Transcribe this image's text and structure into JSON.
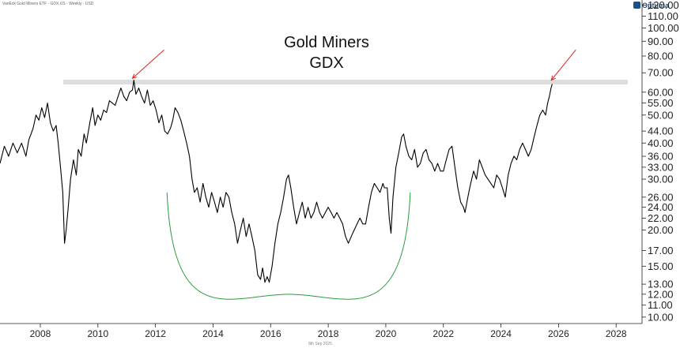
{
  "header": {
    "source_line": "VanEck Gold Miners ETF - GDX.US - Weekly - USD",
    "brand": "Optuma"
  },
  "footer": {
    "date_stamp": "8th Sep 2025"
  },
  "colors": {
    "price_line": "#000000",
    "arrow": "#e02020",
    "arc": "#2a9d3a",
    "resistance_band": "#dddddd",
    "brand": "#1a4f8a"
  },
  "chart_data": {
    "type": "line",
    "title": "Gold Miners",
    "subtitle": "GDX",
    "xlabel": "",
    "ylabel": "",
    "y_scale": "log",
    "xlim": [
      2006.6,
      2028.9
    ],
    "ylim": [
      9.5,
      125
    ],
    "x_ticks": [
      2008,
      2010,
      2012,
      2014,
      2016,
      2018,
      2020,
      2022,
      2024,
      2026,
      2028
    ],
    "y_ticks": [
      120,
      110,
      100,
      90,
      80,
      70,
      60,
      55,
      50,
      44,
      40,
      36,
      33,
      30,
      26,
      24,
      22,
      20,
      17,
      15,
      13,
      12,
      11,
      10
    ],
    "grid": false,
    "series": [
      {
        "values": [
          [
            2006.6,
            34
          ],
          [
            2006.75,
            39
          ],
          [
            2006.9,
            36
          ],
          [
            2007.05,
            40
          ],
          [
            2007.2,
            37
          ],
          [
            2007.35,
            40
          ],
          [
            2007.5,
            36
          ],
          [
            2007.6,
            41
          ],
          [
            2007.75,
            45
          ],
          [
            2007.85,
            50
          ],
          [
            2007.95,
            48
          ],
          [
            2008.05,
            53
          ],
          [
            2008.15,
            49
          ],
          [
            2008.25,
            55
          ],
          [
            2008.35,
            47
          ],
          [
            2008.45,
            44
          ],
          [
            2008.55,
            46
          ],
          [
            2008.62,
            40
          ],
          [
            2008.7,
            33
          ],
          [
            2008.78,
            27
          ],
          [
            2008.84,
            18
          ],
          [
            2008.9,
            20
          ],
          [
            2008.97,
            24
          ],
          [
            2009.05,
            30
          ],
          [
            2009.15,
            35
          ],
          [
            2009.25,
            31
          ],
          [
            2009.32,
            38
          ],
          [
            2009.42,
            36
          ],
          [
            2009.52,
            43
          ],
          [
            2009.6,
            40
          ],
          [
            2009.72,
            47
          ],
          [
            2009.82,
            53
          ],
          [
            2009.9,
            46
          ],
          [
            2010.0,
            50
          ],
          [
            2010.1,
            48
          ],
          [
            2010.2,
            52
          ],
          [
            2010.3,
            51
          ],
          [
            2010.4,
            56
          ],
          [
            2010.5,
            55
          ],
          [
            2010.6,
            54
          ],
          [
            2010.7,
            58
          ],
          [
            2010.8,
            62
          ],
          [
            2010.9,
            58
          ],
          [
            2011.0,
            56
          ],
          [
            2011.1,
            60
          ],
          [
            2011.2,
            61
          ],
          [
            2011.25,
            66
          ],
          [
            2011.32,
            59
          ],
          [
            2011.42,
            62
          ],
          [
            2011.52,
            58
          ],
          [
            2011.62,
            55
          ],
          [
            2011.72,
            61
          ],
          [
            2011.82,
            54
          ],
          [
            2011.92,
            56
          ],
          [
            2012.02,
            52
          ],
          [
            2012.12,
            47
          ],
          [
            2012.22,
            50
          ],
          [
            2012.32,
            44
          ],
          [
            2012.42,
            43
          ],
          [
            2012.52,
            45
          ],
          [
            2012.6,
            48
          ],
          [
            2012.68,
            53
          ],
          [
            2012.78,
            51
          ],
          [
            2012.88,
            48
          ],
          [
            2012.98,
            44
          ],
          [
            2013.08,
            40
          ],
          [
            2013.18,
            36
          ],
          [
            2013.27,
            30
          ],
          [
            2013.35,
            27
          ],
          [
            2013.45,
            28
          ],
          [
            2013.55,
            25
          ],
          [
            2013.65,
            29
          ],
          [
            2013.75,
            26
          ],
          [
            2013.85,
            24
          ],
          [
            2013.95,
            27
          ],
          [
            2014.05,
            25
          ],
          [
            2014.15,
            23
          ],
          [
            2014.25,
            26
          ],
          [
            2014.35,
            24
          ],
          [
            2014.45,
            27
          ],
          [
            2014.55,
            26
          ],
          [
            2014.65,
            23
          ],
          [
            2014.75,
            21
          ],
          [
            2014.85,
            18
          ],
          [
            2014.95,
            20
          ],
          [
            2015.05,
            22
          ],
          [
            2015.15,
            19
          ],
          [
            2015.25,
            21
          ],
          [
            2015.35,
            19
          ],
          [
            2015.45,
            17
          ],
          [
            2015.55,
            14
          ],
          [
            2015.65,
            13.5
          ],
          [
            2015.72,
            14.8
          ],
          [
            2015.8,
            13.2
          ],
          [
            2015.88,
            13.8
          ],
          [
            2015.95,
            13.2
          ],
          [
            2016.05,
            15
          ],
          [
            2016.15,
            18
          ],
          [
            2016.25,
            21
          ],
          [
            2016.35,
            23
          ],
          [
            2016.45,
            26
          ],
          [
            2016.55,
            30
          ],
          [
            2016.62,
            31
          ],
          [
            2016.7,
            28
          ],
          [
            2016.8,
            24
          ],
          [
            2016.9,
            21
          ],
          [
            2017.0,
            23
          ],
          [
            2017.1,
            25
          ],
          [
            2017.2,
            22
          ],
          [
            2017.3,
            24
          ],
          [
            2017.4,
            22
          ],
          [
            2017.5,
            23
          ],
          [
            2017.6,
            25
          ],
          [
            2017.7,
            23
          ],
          [
            2017.8,
            22
          ],
          [
            2017.9,
            23
          ],
          [
            2018.0,
            24
          ],
          [
            2018.1,
            23
          ],
          [
            2018.2,
            22
          ],
          [
            2018.3,
            23
          ],
          [
            2018.4,
            22
          ],
          [
            2018.5,
            21
          ],
          [
            2018.6,
            19
          ],
          [
            2018.7,
            18
          ],
          [
            2018.8,
            19
          ],
          [
            2018.9,
            20
          ],
          [
            2019.0,
            21
          ],
          [
            2019.1,
            22
          ],
          [
            2019.2,
            21
          ],
          [
            2019.3,
            21
          ],
          [
            2019.4,
            24
          ],
          [
            2019.5,
            27
          ],
          [
            2019.6,
            29
          ],
          [
            2019.7,
            28
          ],
          [
            2019.8,
            27
          ],
          [
            2019.9,
            29
          ],
          [
            2019.95,
            28
          ],
          [
            2020.05,
            28
          ],
          [
            2020.12,
            22
          ],
          [
            2020.18,
            19.5
          ],
          [
            2020.25,
            26
          ],
          [
            2020.35,
            33
          ],
          [
            2020.45,
            37
          ],
          [
            2020.55,
            42
          ],
          [
            2020.62,
            43
          ],
          [
            2020.7,
            39
          ],
          [
            2020.8,
            36
          ],
          [
            2020.9,
            35
          ],
          [
            2021.0,
            38
          ],
          [
            2021.1,
            33
          ],
          [
            2021.2,
            34
          ],
          [
            2021.3,
            37
          ],
          [
            2021.4,
            38
          ],
          [
            2021.5,
            35
          ],
          [
            2021.6,
            34
          ],
          [
            2021.7,
            32
          ],
          [
            2021.8,
            34
          ],
          [
            2021.9,
            32
          ],
          [
            2022.0,
            32
          ],
          [
            2022.1,
            35
          ],
          [
            2022.2,
            38
          ],
          [
            2022.3,
            39
          ],
          [
            2022.4,
            33
          ],
          [
            2022.5,
            28
          ],
          [
            2022.6,
            25
          ],
          [
            2022.7,
            24
          ],
          [
            2022.75,
            23
          ],
          [
            2022.85,
            26
          ],
          [
            2022.95,
            29
          ],
          [
            2023.05,
            32
          ],
          [
            2023.15,
            30
          ],
          [
            2023.25,
            35
          ],
          [
            2023.35,
            33
          ],
          [
            2023.45,
            31
          ],
          [
            2023.55,
            30
          ],
          [
            2023.65,
            29
          ],
          [
            2023.75,
            28
          ],
          [
            2023.85,
            31
          ],
          [
            2023.95,
            30
          ],
          [
            2024.05,
            28
          ],
          [
            2024.15,
            26
          ],
          [
            2024.25,
            31
          ],
          [
            2024.35,
            34
          ],
          [
            2024.45,
            36
          ],
          [
            2024.55,
            35
          ],
          [
            2024.65,
            38
          ],
          [
            2024.75,
            40
          ],
          [
            2024.85,
            38
          ],
          [
            2024.95,
            36
          ],
          [
            2025.05,
            38
          ],
          [
            2025.15,
            42
          ],
          [
            2025.25,
            46
          ],
          [
            2025.35,
            50
          ],
          [
            2025.45,
            52
          ],
          [
            2025.55,
            50
          ],
          [
            2025.62,
            55
          ],
          [
            2025.68,
            58
          ],
          [
            2025.74,
            62
          ],
          [
            2025.78,
            64
          ]
        ]
      }
    ],
    "annotations": {
      "resistance_band": {
        "x_start": 2008.8,
        "x_end": 2028.4,
        "level": 65
      },
      "arrows": [
        {
          "from": [
            2012.3,
            84
          ],
          "to": [
            2011.2,
            67
          ]
        },
        {
          "from": [
            2026.6,
            84
          ],
          "to": [
            2025.75,
            66
          ]
        }
      ],
      "arc": {
        "x_start": 2012.4,
        "x_end": 2020.85,
        "y_edge": 27,
        "y_bottom": 12
      }
    }
  }
}
